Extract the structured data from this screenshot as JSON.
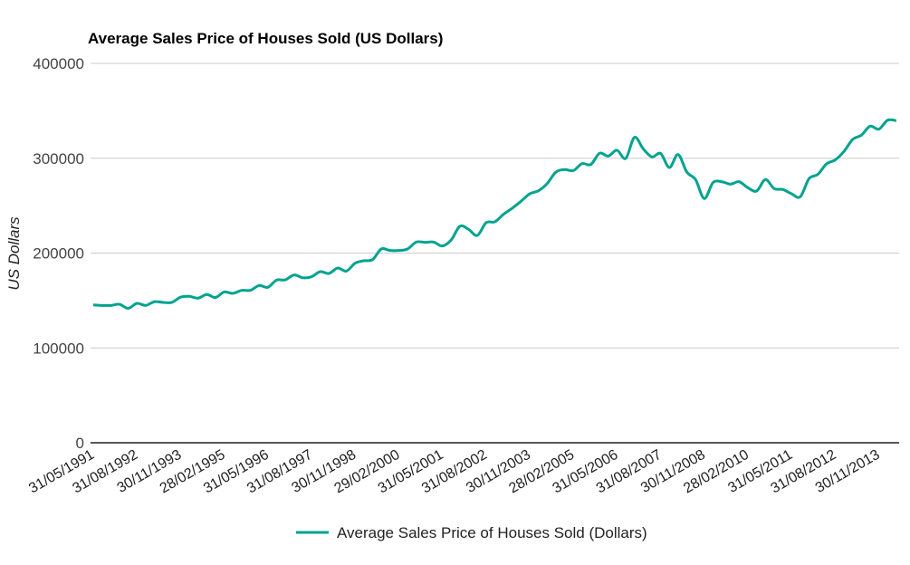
{
  "chart_data": {
    "type": "line",
    "title": "Average Sales Price of Houses Sold (US Dollars)",
    "xlabel": "",
    "ylabel": "US Dollars",
    "ylim": [
      0,
      400000
    ],
    "yticks": [
      "0",
      "100000",
      "200000",
      "300000",
      "400000"
    ],
    "ytick_values": [
      0,
      100000,
      200000,
      300000,
      400000
    ],
    "grid": true,
    "legend_position": "bottom",
    "x_frequency": "quarterly",
    "xtick_every": 5,
    "xticks": [
      "31/05/1991",
      "31/08/1992",
      "30/11/1993",
      "28/02/1995",
      "31/05/1996",
      "31/08/1997",
      "30/11/1998",
      "29/02/2000",
      "31/05/2001",
      "31/08/2002",
      "30/11/2003",
      "28/02/2005",
      "31/05/2006",
      "31/08/2007",
      "30/11/2008",
      "28/02/2010",
      "31/05/2011",
      "31/08/2012",
      "30/11/2013"
    ],
    "series": [
      {
        "name": "Average Sales Price of Houses Sold (Dollars)",
        "color": "#00a38f",
        "values": [
          145400,
          144800,
          144800,
          146000,
          141700,
          147000,
          144800,
          148700,
          148000,
          148000,
          153500,
          154400,
          152500,
          156300,
          153200,
          159000,
          157500,
          160700,
          160700,
          165800,
          163900,
          171500,
          171800,
          176900,
          174000,
          175000,
          180400,
          178500,
          184200,
          181000,
          189300,
          191900,
          193100,
          204300,
          202700,
          202700,
          204300,
          211600,
          211300,
          211600,
          207500,
          213800,
          228200,
          225000,
          218600,
          232000,
          233000,
          240900,
          247300,
          254600,
          262500,
          265700,
          273300,
          285400,
          288000,
          287000,
          294300,
          293400,
          305200,
          302300,
          308400,
          299800,
          322000,
          310000,
          301400,
          305000,
          290200,
          303900,
          285400,
          277500,
          257500,
          274300,
          275200,
          272700,
          275200,
          268900,
          265400,
          277500,
          268000,
          267000,
          262500,
          259400,
          278500,
          282900,
          294000,
          298200,
          307100,
          319800,
          324300,
          333800,
          330600,
          340100,
          339600
        ]
      }
    ]
  }
}
